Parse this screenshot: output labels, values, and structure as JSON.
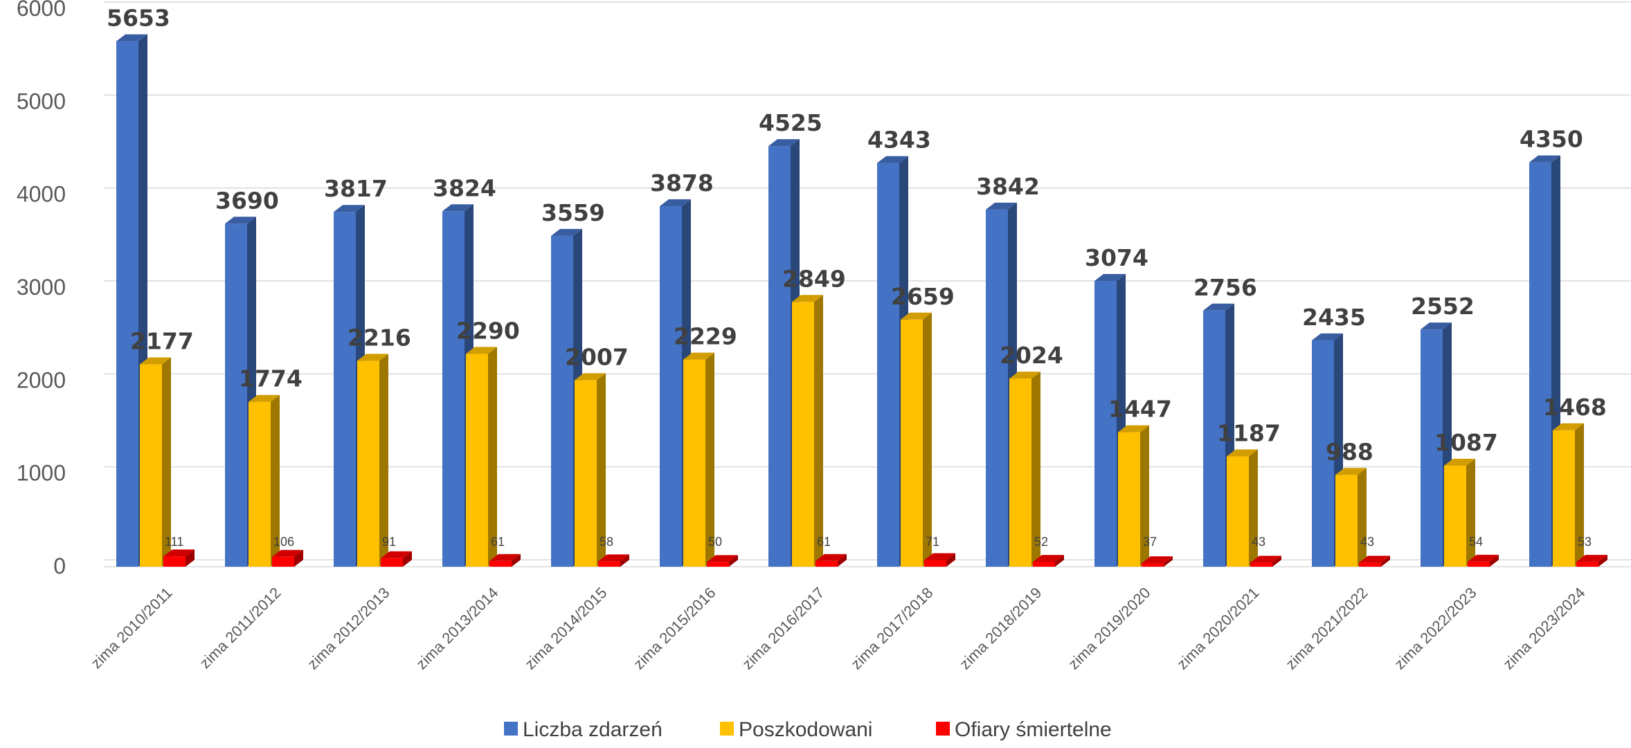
{
  "chart_data": {
    "type": "bar",
    "style": "3d-clustered-column",
    "categories": [
      "zima 2010/2011",
      "zima 2011/2012",
      "zima 2012/2013",
      "zima 2013/2014",
      "zima 2014/2015",
      "zima 2015/2016",
      "zima 2016/2017",
      "zima 2017/2018",
      "zima 2018/2019",
      "zima 2019/2020",
      "zima 2020/2021",
      "zima 2021/2022",
      "zima 2022/2023",
      "zima 2023/2024"
    ],
    "series": [
      {
        "name": "Liczba zdarzeń",
        "color": "#4472C4",
        "values": [
          5653,
          3690,
          3817,
          3824,
          3559,
          3878,
          4525,
          4343,
          3842,
          3074,
          2756,
          2435,
          2552,
          4350
        ]
      },
      {
        "name": "Poszkodowani",
        "color": "#FFC000",
        "values": [
          2177,
          1774,
          2216,
          2290,
          2007,
          2229,
          2849,
          2659,
          2024,
          1447,
          1187,
          988,
          1087,
          1468
        ]
      },
      {
        "name": "Ofiary śmiertelne",
        "color": "#FF0000",
        "values": [
          111,
          106,
          91,
          61,
          58,
          50,
          61,
          71,
          52,
          37,
          43,
          43,
          54,
          53
        ]
      }
    ],
    "ylim": [
      0,
      6000
    ],
    "yticks": [
      "0",
      "1000",
      "2000",
      "3000",
      "4000",
      "5000",
      "6000"
    ],
    "grid": true,
    "legend_position": "bottom",
    "title": "",
    "xlabel": "",
    "ylabel": ""
  }
}
